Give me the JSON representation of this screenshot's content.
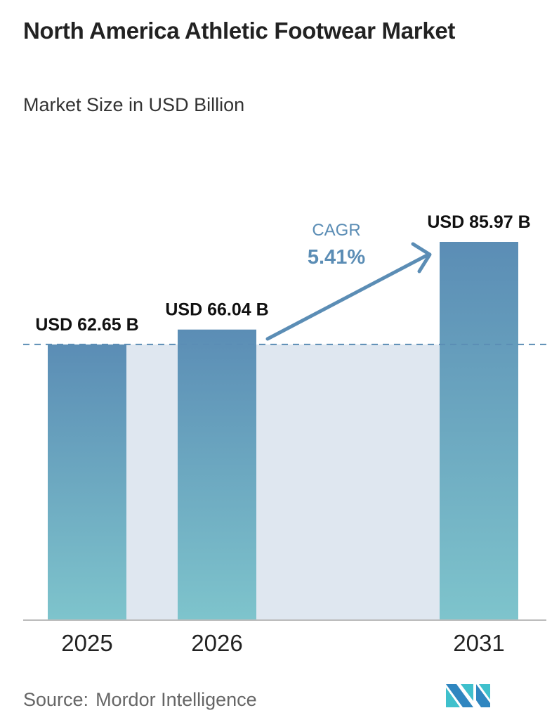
{
  "title": "North America Athletic Footwear Market",
  "subtitle": "Market Size in USD Billion",
  "source_label": "Source:",
  "source_name": "Mordor Intelligence",
  "logo_text": "MI",
  "chart_data": {
    "type": "bar",
    "title": "North America Athletic Footwear Market",
    "subtitle": "Market Size in USD Billion",
    "categories": [
      "2025",
      "2026",
      "2031"
    ],
    "values": [
      62.65,
      66.04,
      85.97
    ],
    "data_labels": [
      "USD 62.65 B",
      "USD 66.04 B",
      "USD 85.97 B"
    ],
    "ylim": [
      0,
      85.97
    ],
    "xlabel": "",
    "ylabel": "",
    "grid": false,
    "annotation": {
      "label": "CAGR",
      "value": "5.41%"
    },
    "colors": {
      "bar_top": "#5b8db5",
      "bar_bottom": "#7ec4cc",
      "band": "#dfe7f0",
      "accent": "#5b8db5"
    }
  }
}
